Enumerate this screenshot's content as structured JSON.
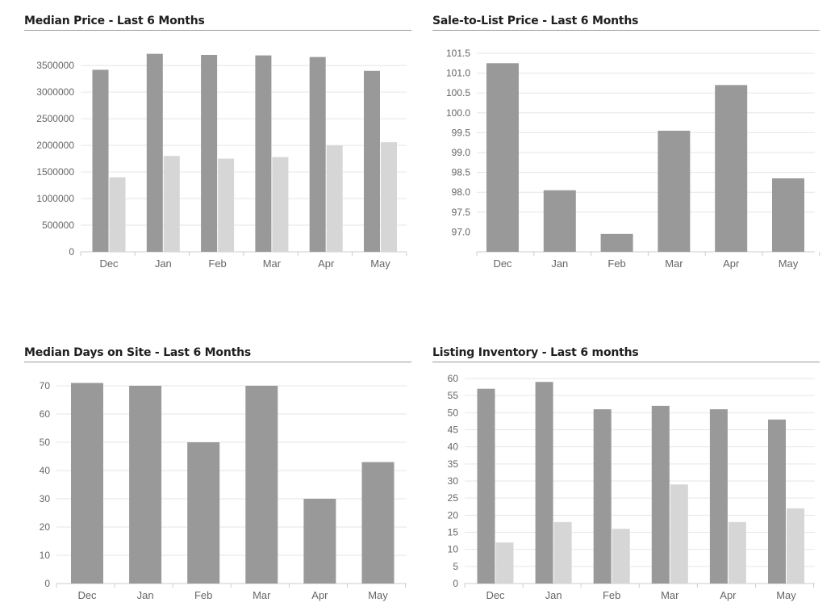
{
  "colors": {
    "primary": "#999999",
    "secondary": "#d6d6d6",
    "grid": "#e6e6e6",
    "axis": "#cccccc"
  },
  "chart_data": [
    {
      "id": "median-price",
      "type": "bar",
      "title": "Median Price - Last 6 Months",
      "categories": [
        "Dec",
        "Jan",
        "Feb",
        "Mar",
        "Apr",
        "May"
      ],
      "series": [
        {
          "values": [
            3420000,
            3720000,
            3700000,
            3690000,
            3660000,
            3400000
          ]
        },
        {
          "values": [
            1400000,
            1800000,
            1750000,
            1780000,
            2000000,
            2060000
          ]
        }
      ],
      "ylim": [
        0,
        3700000
      ],
      "yticks": [
        "0",
        "500000",
        "1000000",
        "1500000",
        "2000000",
        "2500000",
        "3000000",
        "3500000"
      ],
      "ytick_values": [
        0,
        500000,
        1000000,
        1500000,
        2000000,
        2500000,
        3000000,
        3500000
      ],
      "grid": true
    },
    {
      "id": "sale-to-list",
      "type": "bar",
      "title": "Sale-to-List Price - Last 6 Months",
      "categories": [
        "Dec",
        "Jan",
        "Feb",
        "Mar",
        "Apr",
        "May"
      ],
      "series": [
        {
          "values": [
            101.25,
            98.05,
            96.95,
            99.55,
            100.7,
            98.35
          ]
        }
      ],
      "ylim": [
        96.5,
        101.5
      ],
      "yticks": [
        "97.0",
        "97.5",
        "98.0",
        "98.5",
        "99.0",
        "99.5",
        "100.0",
        "100.5",
        "101.0",
        "101.5"
      ],
      "ytick_values": [
        97.0,
        97.5,
        98.0,
        98.5,
        99.0,
        99.5,
        100.0,
        100.5,
        101.0,
        101.5
      ],
      "grid": true
    },
    {
      "id": "median-days",
      "type": "bar",
      "title": "Median Days on Site - Last 6 Months",
      "categories": [
        "Dec",
        "Jan",
        "Feb",
        "Mar",
        "Apr",
        "May"
      ],
      "series": [
        {
          "values": [
            71,
            70,
            50,
            70,
            30,
            43
          ]
        }
      ],
      "ylim": [
        0,
        70
      ],
      "yticks": [
        "0",
        "10",
        "20",
        "30",
        "40",
        "50",
        "60",
        "70"
      ],
      "ytick_values": [
        0,
        10,
        20,
        30,
        40,
        50,
        60,
        70
      ],
      "grid": true
    },
    {
      "id": "listing-inventory",
      "type": "bar",
      "title": "Listing Inventory - Last 6 months",
      "categories": [
        "Dec",
        "Jan",
        "Feb",
        "Mar",
        "Apr",
        "May"
      ],
      "series": [
        {
          "values": [
            57,
            59,
            51,
            52,
            51,
            48
          ]
        },
        {
          "values": [
            12,
            18,
            16,
            29,
            18,
            22
          ]
        }
      ],
      "ylim": [
        0,
        60
      ],
      "yticks": [
        "0",
        "5",
        "10",
        "15",
        "20",
        "25",
        "30",
        "35",
        "40",
        "45",
        "50",
        "55",
        "60"
      ],
      "ytick_values": [
        0,
        5,
        10,
        15,
        20,
        25,
        30,
        35,
        40,
        45,
        50,
        55,
        60
      ],
      "grid": true
    }
  ]
}
